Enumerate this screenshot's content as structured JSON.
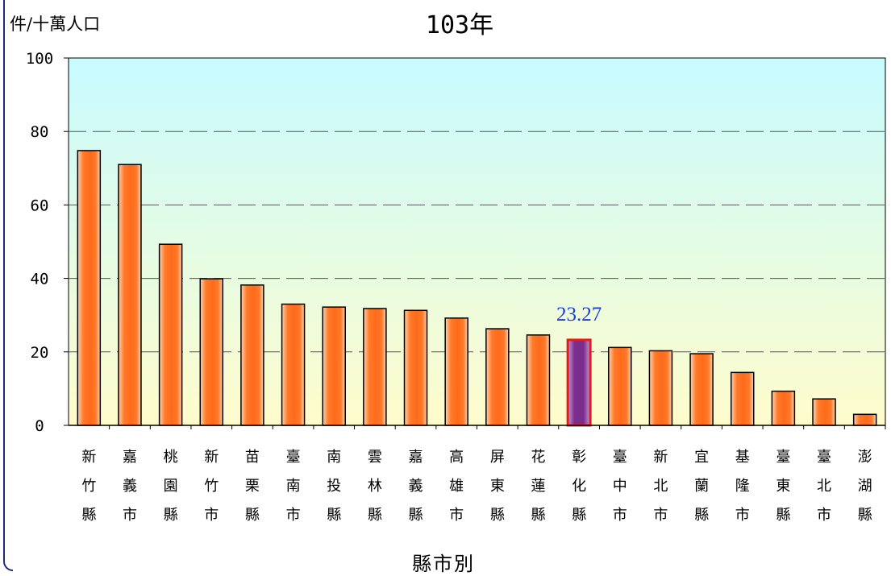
{
  "header": {
    "unit": "件/十萬人口",
    "title": "103年"
  },
  "chart_data": {
    "type": "bar",
    "title": "103年",
    "ylabel": "件/十萬人口",
    "xlabel": "縣市別",
    "ylim": [
      0,
      100
    ],
    "yticks": [
      "0",
      "20",
      "40",
      "60",
      "80",
      "100"
    ],
    "grid": "horizontal-dashed",
    "categories": [
      "新竹縣",
      "嘉義市",
      "桃園縣",
      "新竹市",
      "苗栗縣",
      "臺南市",
      "南投縣",
      "雲林縣",
      "嘉義縣",
      "高雄市",
      "屏東縣",
      "花蓮縣",
      "彰化縣",
      "臺中市",
      "新北市",
      "宜蘭縣",
      "基隆市",
      "臺東縣",
      "臺北市",
      "澎湖縣"
    ],
    "values": [
      74.8,
      71.0,
      49.3,
      39.9,
      38.2,
      33.0,
      32.2,
      31.8,
      31.3,
      29.2,
      26.3,
      24.6,
      23.27,
      21.2,
      20.3,
      19.5,
      14.4,
      9.3,
      7.2,
      3.0
    ],
    "highlight_index": 12,
    "highlight_label": "23.27",
    "colors": {
      "bar": "#ff6a1a",
      "bar_highlight": "#7a2d8c",
      "highlight_border": "#e61a1a",
      "label": "#1c3cd6",
      "bg_top": "#c8fbff",
      "bg_bottom": "#fffccc"
    }
  }
}
